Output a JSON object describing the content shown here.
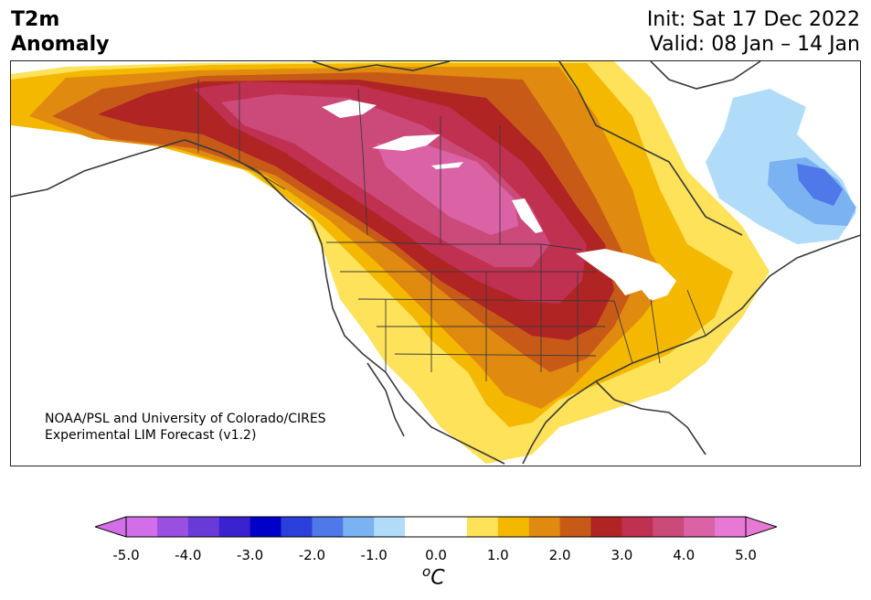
{
  "title": {
    "variable_line1": "T2m",
    "variable_line2": "Anomaly",
    "init": "Init: Sat 17 Dec 2022",
    "valid": "Valid: 08 Jan – 14 Jan"
  },
  "credit": {
    "line1": "NOAA/PSL and University of Colorado/CIRES",
    "line2": "Experimental LIM Forecast (v1.2)"
  },
  "colorbar": {
    "colors": [
      "#d26fe8",
      "#9a4fe0",
      "#6a3ad8",
      "#3b22d0",
      "#0000c8",
      "#2a3fdc",
      "#4f78e8",
      "#7ab2f2",
      "#b0dcfa",
      "#ffffff",
      "#ffffff",
      "#fde25a",
      "#f4b800",
      "#e08a10",
      "#c85a18",
      "#b02424",
      "#c03050",
      "#cc4a7a",
      "#dc62a6",
      "#e878d6"
    ],
    "ticks": [
      "-5.0",
      "-4.0",
      "-3.0",
      "-2.0",
      "-1.0",
      "0.0",
      "1.0",
      "2.0",
      "3.0",
      "4.0",
      "5.0"
    ],
    "unit_prefix": "o",
    "unit": "C"
  },
  "map": {
    "region": "North America",
    "fills": {
      "light_yellow": "#fde25a",
      "yellow": "#f4b800",
      "orange": "#e08a10",
      "dark_orange": "#c85a18",
      "red": "#b02424",
      "crimson": "#c03050",
      "rose": "#cc4a7a",
      "pink": "#dc62a6",
      "light_blue": "#b0dcfa",
      "mid_blue": "#7ab2f2",
      "blue": "#4f78e8",
      "coast": "#3a3a3a"
    }
  }
}
